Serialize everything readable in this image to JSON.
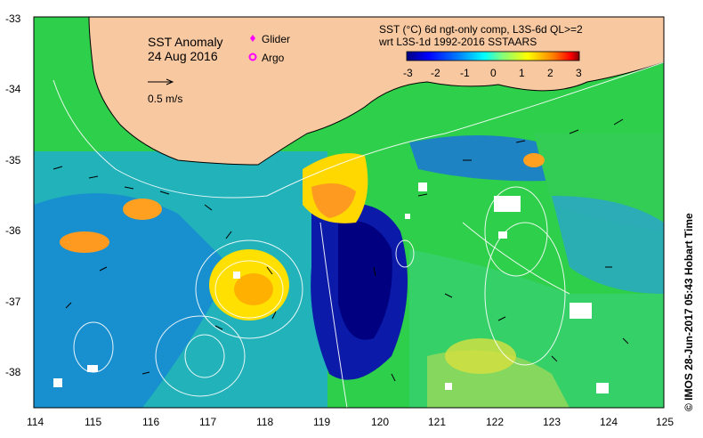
{
  "map": {
    "title": "SST Anomaly",
    "date": "24 Aug 2016",
    "scale_arrow_label": "0.5 m/s",
    "legend": {
      "glider_label": "Glider",
      "argo_label": "Argo",
      "glider_color": "#ff00ff",
      "argo_color": "#ff00ff"
    },
    "colorbar": {
      "caption_line1": "SST (°C) 6d ngt-only comp, L3S-6d QL>=2",
      "caption_line2": "wrt L3S-1d 1992-2016 SSTAARS",
      "ticks": [
        "-3",
        "-2",
        "-1",
        "0",
        "1",
        "2",
        "3"
      ],
      "colors": [
        "#00007f",
        "#0000ff",
        "#007fff",
        "#00ffff",
        "#7fff7f",
        "#ffff00",
        "#ff7f00",
        "#ff0000",
        "#7f0000"
      ]
    },
    "axes": {
      "lon_ticks": [
        "114",
        "115",
        "116",
        "117",
        "118",
        "119",
        "120",
        "121",
        "122",
        "123",
        "124",
        "125"
      ],
      "lat_ticks": [
        "-33",
        "-34",
        "-35",
        "-36",
        "-37",
        "-38"
      ],
      "lon_range": [
        114,
        125
      ],
      "lat_range": [
        -38.5,
        -33
      ]
    },
    "land_color": "#f8c8a0",
    "credit": "© IMOS 28-Jun-2017 05:43 Hobart Time"
  }
}
